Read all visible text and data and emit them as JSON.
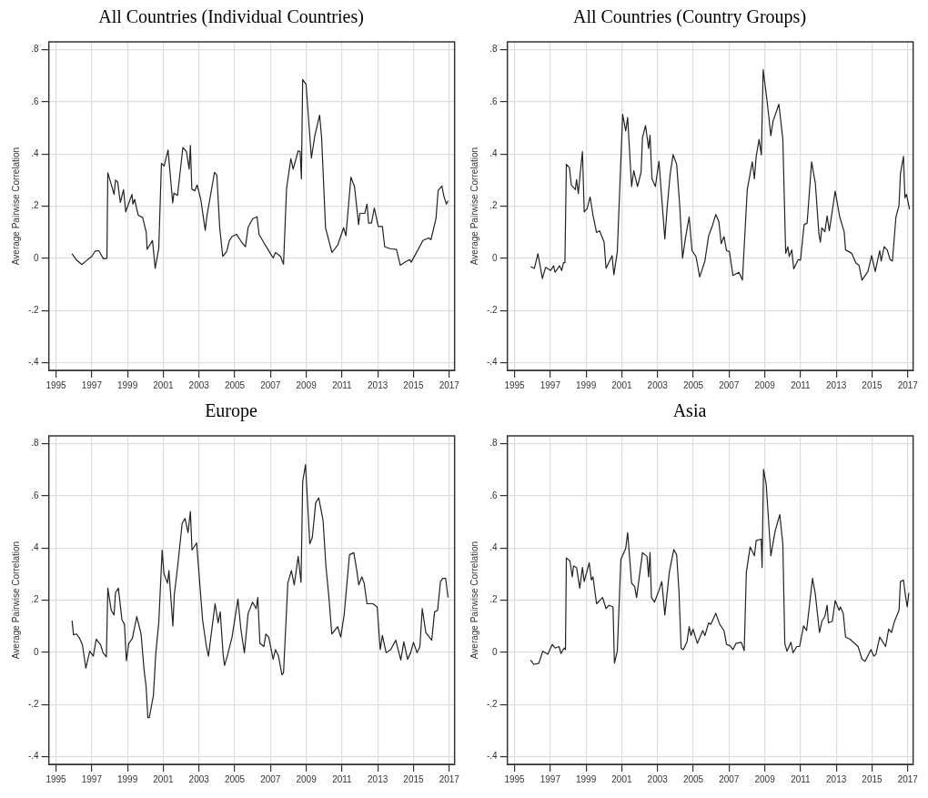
{
  "chart_data": [
    {
      "type": "line",
      "title": "All Countries (Individual Countries)",
      "ylabel": "Average Pairwise Correlation",
      "grid": true,
      "xlim": [
        1994.6,
        2017.3
      ],
      "ylim": [
        -0.43,
        0.83
      ],
      "xticks": [
        1995,
        1997,
        1999,
        2001,
        2003,
        2005,
        2007,
        2009,
        2011,
        2013,
        2015,
        2017
      ],
      "yticks": [
        {
          "value": -0.4,
          "label": "-.4"
        },
        {
          "value": -0.2,
          "label": "-.2"
        },
        {
          "value": 0,
          "label": "0"
        },
        {
          "value": 0.2,
          "label": ".2"
        },
        {
          "value": 0.4,
          "label": ".4"
        },
        {
          "value": 0.6,
          "label": ".6"
        },
        {
          "value": 0.8,
          "label": ".8"
        }
      ],
      "x": [
        1995.9,
        1996.15,
        1996.45,
        1996.6,
        1997.0,
        1997.2,
        1997.4,
        1997.65,
        1997.85,
        1997.9,
        1998.05,
        1998.25,
        1998.33,
        1998.45,
        1998.6,
        1998.78,
        1998.9,
        1999.25,
        1999.3,
        1999.4,
        1999.6,
        1999.85,
        2000.05,
        2000.1,
        2000.4,
        2000.55,
        2000.75,
        2000.9,
        2001.05,
        2001.27,
        2001.53,
        2001.6,
        2001.8,
        2002.1,
        2002.3,
        2002.45,
        2002.52,
        2002.6,
        2002.77,
        2002.9,
        2003.1,
        2003.35,
        2003.45,
        2003.87,
        2004.0,
        2004.16,
        2004.33,
        2004.55,
        2004.7,
        2004.85,
        2005.1,
        2005.38,
        2005.6,
        2005.75,
        2006.0,
        2006.25,
        2006.36,
        2006.66,
        2006.82,
        2007.15,
        2007.28,
        2007.56,
        2007.73,
        2007.9,
        2008.14,
        2008.27,
        2008.55,
        2008.66,
        2008.73,
        2008.8,
        2008.99,
        2009.29,
        2009.48,
        2009.75,
        2009.86,
        2010.08,
        2010.24,
        2010.44,
        2010.76,
        2011.09,
        2011.22,
        2011.5,
        2011.7,
        2011.93,
        2012.0,
        2012.27,
        2012.4,
        2012.49,
        2012.65,
        2012.81,
        2013.03,
        2013.26,
        2013.39,
        2013.72,
        2014.05,
        2014.26,
        2014.62,
        2014.79,
        2014.87,
        2015.2,
        2015.53,
        2015.85,
        2015.98,
        2016.26,
        2016.38,
        2016.59,
        2016.7,
        2016.84,
        2016.93
      ],
      "series": [
        {
          "color": "#222222",
          "values": [
            0.017,
            -0.007,
            -0.024,
            -0.015,
            0.007,
            0.028,
            0.029,
            -0.002,
            0.0,
            0.328,
            0.293,
            0.245,
            0.3,
            0.293,
            0.214,
            0.263,
            0.178,
            0.245,
            0.208,
            0.226,
            0.165,
            0.156,
            0.099,
            0.034,
            0.068,
            -0.039,
            0.038,
            0.364,
            0.354,
            0.415,
            0.212,
            0.25,
            0.241,
            0.425,
            0.409,
            0.342,
            0.433,
            0.265,
            0.259,
            0.281,
            0.226,
            0.107,
            0.165,
            0.33,
            0.318,
            0.117,
            0.007,
            0.026,
            0.068,
            0.083,
            0.092,
            0.062,
            0.044,
            0.119,
            0.151,
            0.159,
            0.092,
            0.056,
            0.038,
            0.001,
            0.022,
            0.007,
            -0.023,
            0.269,
            0.382,
            0.342,
            0.412,
            0.409,
            0.305,
            0.686,
            0.667,
            0.384,
            0.47,
            0.549,
            0.463,
            0.117,
            0.074,
            0.022,
            0.05,
            0.117,
            0.086,
            0.311,
            0.275,
            0.129,
            0.172,
            0.172,
            0.208,
            0.135,
            0.135,
            0.193,
            0.122,
            0.122,
            0.044,
            0.036,
            0.034,
            -0.027,
            -0.011,
            -0.005,
            -0.015,
            0.026,
            0.068,
            0.078,
            0.071,
            0.153,
            0.26,
            0.277,
            0.238,
            0.208,
            0.22
          ]
        }
      ]
    },
    {
      "type": "line",
      "title": "All Countries (Country Groups)",
      "ylabel": "Average Pairwise Correlation",
      "grid": true,
      "xlim": [
        1994.6,
        2017.3
      ],
      "ylim": [
        -0.43,
        0.83
      ],
      "xticks": [
        1995,
        1997,
        1999,
        2001,
        2003,
        2005,
        2007,
        2009,
        2011,
        2013,
        2015,
        2017
      ],
      "yticks": [
        {
          "value": -0.4,
          "label": "-.4"
        },
        {
          "value": -0.2,
          "label": "-.2"
        },
        {
          "value": 0,
          "label": "0"
        },
        {
          "value": 0.2,
          "label": ".2"
        },
        {
          "value": 0.4,
          "label": ".4"
        },
        {
          "value": 0.6,
          "label": ".6"
        },
        {
          "value": 0.8,
          "label": ".8"
        }
      ],
      "x": [
        1995.9,
        1996.11,
        1996.31,
        1996.56,
        1996.74,
        1997.02,
        1997.19,
        1997.27,
        1997.52,
        1997.64,
        1997.74,
        1997.82,
        1997.9,
        1998.07,
        1998.18,
        1998.4,
        1998.47,
        1998.57,
        1998.68,
        1998.8,
        1998.9,
        1999.06,
        1999.23,
        1999.39,
        1999.59,
        1999.76,
        2000.01,
        2000.12,
        2000.46,
        2000.56,
        2000.75,
        2001.05,
        2001.22,
        2001.33,
        2001.55,
        2001.67,
        2001.88,
        2002.08,
        2002.16,
        2002.33,
        2002.5,
        2002.58,
        2002.69,
        2002.88,
        2003.08,
        2003.41,
        2003.54,
        2003.71,
        2003.87,
        2004.07,
        2004.24,
        2004.4,
        2004.57,
        2004.77,
        2004.93,
        2005.15,
        2005.36,
        2005.65,
        2005.86,
        2006.06,
        2006.26,
        2006.43,
        2006.56,
        2006.72,
        2006.86,
        2007.02,
        2007.22,
        2007.55,
        2007.75,
        2008.02,
        2008.3,
        2008.42,
        2008.52,
        2008.68,
        2008.81,
        2008.91,
        2009.13,
        2009.34,
        2009.46,
        2009.79,
        2010.01,
        2010.17,
        2010.29,
        2010.37,
        2010.51,
        2010.62,
        2010.87,
        2011.0,
        2011.2,
        2011.37,
        2011.62,
        2011.83,
        2012.03,
        2012.11,
        2012.19,
        2012.36,
        2012.49,
        2012.61,
        2012.94,
        2013.19,
        2013.44,
        2013.52,
        2013.86,
        2014.1,
        2014.27,
        2014.44,
        2014.77,
        2014.98,
        2015.18,
        2015.43,
        2015.51,
        2015.68,
        2015.85,
        2016.01,
        2016.14,
        2016.34,
        2016.51,
        2016.59,
        2016.76,
        2016.84,
        2016.93,
        2017.1
      ],
      "series": [
        {
          "color": "#222222",
          "values": [
            -0.032,
            -0.039,
            0.017,
            -0.078,
            -0.035,
            -0.047,
            -0.029,
            -0.054,
            -0.029,
            -0.047,
            -0.017,
            -0.017,
            0.36,
            0.348,
            0.281,
            0.263,
            0.302,
            0.248,
            0.33,
            0.409,
            0.178,
            0.19,
            0.235,
            0.165,
            0.099,
            0.105,
            0.062,
            -0.039,
            0.01,
            -0.063,
            0.026,
            0.552,
            0.488,
            0.54,
            0.275,
            0.336,
            0.275,
            0.33,
            0.463,
            0.509,
            0.421,
            0.472,
            0.305,
            0.275,
            0.372,
            0.074,
            0.196,
            0.324,
            0.397,
            0.36,
            0.204,
            0.0,
            0.08,
            0.159,
            0.029,
            0.007,
            -0.072,
            -0.011,
            0.086,
            0.123,
            0.168,
            0.141,
            0.056,
            0.083,
            0.029,
            0.026,
            -0.066,
            -0.054,
            -0.084,
            0.263,
            0.37,
            0.305,
            0.391,
            0.455,
            0.397,
            0.723,
            0.603,
            0.47,
            0.525,
            0.591,
            0.457,
            0.019,
            0.044,
            0.007,
            0.032,
            -0.041,
            -0.005,
            -0.007,
            0.129,
            0.135,
            0.37,
            0.287,
            0.092,
            0.062,
            0.117,
            0.102,
            0.162,
            0.105,
            0.257,
            0.159,
            0.102,
            0.032,
            0.019,
            -0.019,
            -0.027,
            -0.084,
            -0.051,
            0.01,
            -0.051,
            0.029,
            -0.011,
            0.044,
            0.032,
            -0.005,
            -0.011,
            0.159,
            0.202,
            0.324,
            0.391,
            0.232,
            0.245,
            0.187
          ]
        }
      ]
    },
    {
      "type": "line",
      "title": "Europe",
      "ylabel": "Average Pairwise Correlation",
      "grid": true,
      "xlim": [
        1994.6,
        2017.3
      ],
      "ylim": [
        -0.43,
        0.83
      ],
      "xticks": [
        1995,
        1997,
        1999,
        2001,
        2003,
        2005,
        2007,
        2009,
        2011,
        2013,
        2015,
        2017
      ],
      "yticks": [
        {
          "value": -0.4,
          "label": "-.4"
        },
        {
          "value": -0.2,
          "label": "-.2"
        },
        {
          "value": 0,
          "label": "0"
        },
        {
          "value": 0.2,
          "label": ".2"
        },
        {
          "value": 0.4,
          "label": ".4"
        },
        {
          "value": 0.6,
          "label": ".6"
        },
        {
          "value": 0.8,
          "label": ".8"
        }
      ],
      "x": [
        1995.9,
        1995.98,
        1996.15,
        1996.31,
        1996.48,
        1996.67,
        1996.89,
        1997.09,
        1997.25,
        1997.5,
        1997.63,
        1997.82,
        1997.9,
        1998.09,
        1998.25,
        1998.33,
        1998.49,
        1998.69,
        1998.83,
        1998.94,
        1999.07,
        1999.27,
        1999.52,
        1999.76,
        1999.93,
        2000.04,
        2000.14,
        2000.22,
        2000.45,
        2000.58,
        2000.75,
        2000.94,
        2001.04,
        2001.24,
        2001.32,
        2001.54,
        2001.62,
        2001.81,
        2002.06,
        2002.22,
        2002.39,
        2002.52,
        2002.61,
        2002.87,
        2003.2,
        2003.4,
        2003.53,
        2003.9,
        2004.07,
        2004.19,
        2004.35,
        2004.43,
        2004.6,
        2004.85,
        2005.18,
        2005.34,
        2005.54,
        2005.75,
        2006.0,
        2006.2,
        2006.29,
        2006.41,
        2006.63,
        2006.74,
        2006.9,
        2007.15,
        2007.28,
        2007.45,
        2007.64,
        2007.73,
        2007.97,
        2008.17,
        2008.33,
        2008.55,
        2008.71,
        2008.8,
        2008.96,
        2009.2,
        2009.34,
        2009.53,
        2009.7,
        2009.94,
        2010.1,
        2010.27,
        2010.43,
        2010.68,
        2010.76,
        2010.93,
        2011.12,
        2011.42,
        2011.66,
        2011.83,
        2011.94,
        2012.11,
        2012.24,
        2012.4,
        2012.73,
        2012.97,
        2013.14,
        2013.26,
        2013.47,
        2013.72,
        2014.01,
        2014.29,
        2014.46,
        2014.67,
        2014.84,
        2015.0,
        2015.2,
        2015.36,
        2015.49,
        2015.69,
        2016.02,
        2016.18,
        2016.35,
        2016.51,
        2016.64,
        2016.8,
        2016.93
      ],
      "series": [
        {
          "color": "#222222",
          "values": [
            0.121,
            0.067,
            0.07,
            0.055,
            0.028,
            -0.061,
            0.004,
            -0.015,
            0.05,
            0.028,
            -0.002,
            -0.018,
            0.246,
            0.161,
            0.143,
            0.228,
            0.246,
            0.125,
            0.107,
            -0.033,
            0.034,
            0.052,
            0.137,
            0.07,
            -0.069,
            -0.13,
            -0.251,
            -0.251,
            -0.166,
            -0.008,
            0.113,
            0.392,
            0.301,
            0.265,
            0.313,
            0.101,
            0.222,
            0.331,
            0.495,
            0.513,
            0.459,
            0.54,
            0.392,
            0.419,
            0.125,
            0.028,
            -0.015,
            0.186,
            0.113,
            0.155,
            -0.008,
            -0.051,
            -0.011,
            0.058,
            0.204,
            0.091,
            -0.002,
            0.149,
            0.192,
            0.167,
            0.21,
            0.034,
            0.022,
            0.07,
            0.058,
            -0.027,
            0.01,
            -0.015,
            -0.087,
            -0.079,
            0.265,
            0.313,
            0.258,
            0.368,
            0.268,
            0.653,
            0.72,
            0.416,
            0.44,
            0.574,
            0.592,
            0.507,
            0.331,
            0.21,
            0.07,
            0.091,
            0.098,
            0.058,
            0.143,
            0.374,
            0.382,
            0.313,
            0.258,
            0.289,
            0.265,
            0.186,
            0.186,
            0.174,
            0.01,
            0.064,
            -0.002,
            0.01,
            0.046,
            -0.03,
            0.04,
            -0.027,
            -0.002,
            0.038,
            -0.002,
            0.022,
            0.167,
            0.076,
            0.046,
            0.155,
            0.161,
            0.271,
            0.283,
            0.283,
            0.21
          ]
        }
      ]
    },
    {
      "type": "line",
      "title": "Asia",
      "ylabel": "Average Pairwise Correlation",
      "grid": true,
      "xlim": [
        1994.6,
        2017.3
      ],
      "ylim": [
        -0.43,
        0.83
      ],
      "xticks": [
        1995,
        1997,
        1999,
        2001,
        2003,
        2005,
        2007,
        2009,
        2011,
        2013,
        2015,
        2017
      ],
      "yticks": [
        {
          "value": -0.4,
          "label": "-.4"
        },
        {
          "value": -0.2,
          "label": "-.2"
        },
        {
          "value": 0,
          "label": "0"
        },
        {
          "value": 0.2,
          "label": ".2"
        },
        {
          "value": 0.4,
          "label": ".4"
        },
        {
          "value": 0.6,
          "label": ".6"
        },
        {
          "value": 0.8,
          "label": ".8"
        }
      ],
      "x": [
        1995.9,
        1996.08,
        1996.36,
        1996.58,
        1996.86,
        1997.11,
        1997.27,
        1997.49,
        1997.6,
        1997.77,
        1997.85,
        1997.9,
        1998.1,
        1998.23,
        1998.3,
        1998.47,
        1998.65,
        1998.8,
        1998.9,
        1999.18,
        1999.3,
        1999.39,
        1999.59,
        1999.93,
        2000.12,
        2000.29,
        2000.51,
        2000.59,
        2000.75,
        2000.95,
        2001.22,
        2001.33,
        2001.55,
        2001.72,
        2001.83,
        2002.16,
        2002.41,
        2002.5,
        2002.58,
        2002.66,
        2002.83,
        2003.08,
        2003.24,
        2003.41,
        2003.66,
        2003.91,
        2004.07,
        2004.2,
        2004.32,
        2004.44,
        2004.65,
        2004.77,
        2004.87,
        2004.98,
        2005.23,
        2005.53,
        2005.65,
        2005.86,
        2005.98,
        2006.26,
        2006.48,
        2006.72,
        2006.86,
        2007.06,
        2007.22,
        2007.39,
        2007.69,
        2007.85,
        2007.97,
        2008.18,
        2008.42,
        2008.52,
        2008.8,
        2008.85,
        2008.93,
        2009.08,
        2009.34,
        2009.58,
        2009.84,
        2010.01,
        2010.12,
        2010.24,
        2010.46,
        2010.58,
        2010.79,
        2010.95,
        2011.17,
        2011.34,
        2011.67,
        2011.83,
        2012.06,
        2012.2,
        2012.36,
        2012.49,
        2012.56,
        2012.78,
        2012.94,
        2013.16,
        2013.23,
        2013.39,
        2013.52,
        2013.77,
        2014.02,
        2014.22,
        2014.44,
        2014.61,
        2014.94,
        2015.1,
        2015.22,
        2015.43,
        2015.76,
        2015.93,
        2016.09,
        2016.26,
        2016.51,
        2016.59,
        2016.76,
        2016.87,
        2016.97,
        2017.06
      ],
      "series": [
        {
          "color": "#222222",
          "values": [
            -0.03,
            -0.047,
            -0.042,
            0.004,
            -0.008,
            0.03,
            0.016,
            0.022,
            -0.005,
            0.016,
            0.01,
            0.362,
            0.35,
            0.289,
            0.331,
            0.325,
            0.246,
            0.325,
            0.271,
            0.343,
            0.277,
            0.289,
            0.186,
            0.21,
            0.167,
            0.18,
            0.174,
            -0.042,
            0.004,
            0.356,
            0.398,
            0.459,
            0.265,
            0.252,
            0.21,
            0.382,
            0.368,
            0.289,
            0.382,
            0.21,
            0.192,
            0.237,
            0.271,
            0.143,
            0.307,
            0.394,
            0.374,
            0.234,
            0.016,
            0.01,
            0.04,
            0.098,
            0.064,
            0.089,
            0.034,
            0.083,
            0.064,
            0.113,
            0.107,
            0.149,
            0.107,
            0.083,
            0.03,
            0.025,
            0.01,
            0.034,
            0.038,
            0.006,
            0.307,
            0.404,
            0.37,
            0.428,
            0.434,
            0.325,
            0.701,
            0.644,
            0.37,
            0.465,
            0.528,
            0.416,
            0.034,
            0.004,
            0.038,
            -0.002,
            0.022,
            0.022,
            0.101,
            0.083,
            0.283,
            0.222,
            0.076,
            0.119,
            0.137,
            0.18,
            0.113,
            0.119,
            0.198,
            0.161,
            0.174,
            0.149,
            0.058,
            0.05,
            0.034,
            0.022,
            -0.027,
            -0.035,
            0.01,
            -0.015,
            -0.008,
            0.058,
            0.022,
            0.089,
            0.076,
            0.119,
            0.161,
            0.271,
            0.277,
            0.216,
            0.174,
            0.228
          ]
        }
      ]
    }
  ]
}
